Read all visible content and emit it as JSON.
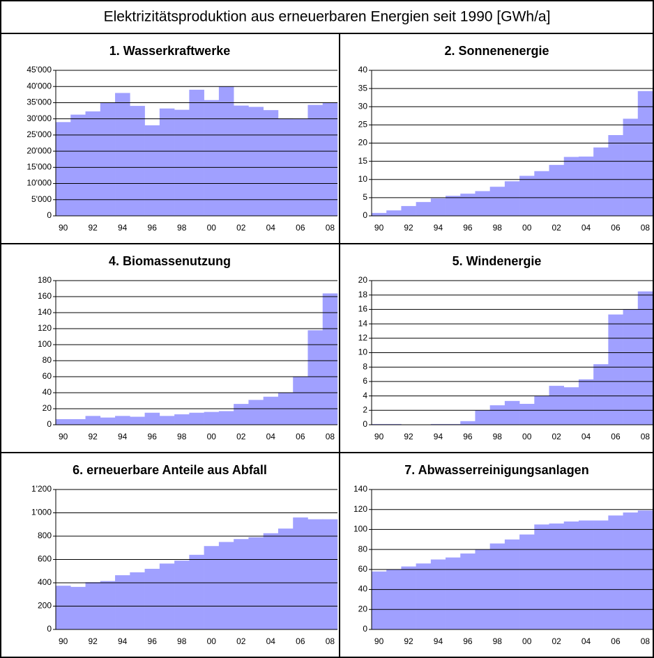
{
  "title": "Elektrizitätsproduktion aus erneuerbaren Energien seit 1990  [GWh/a]",
  "chart_data": [
    {
      "type": "bar",
      "title": "1. Wasserkraftwerke",
      "color": "#a0a0ff",
      "grid": true,
      "categories": [
        "90",
        null,
        "92",
        null,
        "94",
        null,
        "96",
        null,
        "98",
        null,
        "00",
        null,
        "02",
        null,
        "04",
        null,
        "06",
        null,
        "08"
      ],
      "values": [
        29000,
        31300,
        32300,
        35000,
        38000,
        34000,
        28000,
        33200,
        32800,
        39000,
        35800,
        40000,
        34100,
        33700,
        32700,
        30100,
        30000,
        34300,
        35000
      ],
      "ylim": [
        0,
        45000
      ],
      "yticks": [
        0,
        {
          "value": 5000,
          "label": "5'000"
        },
        {
          "value": 10000,
          "label": "10'000"
        },
        {
          "value": 15000,
          "label": "15'000"
        },
        {
          "value": 20000,
          "label": "20'000"
        },
        {
          "value": 25000,
          "label": "25'000"
        },
        {
          "value": 30000,
          "label": "30'000"
        },
        {
          "value": 35000,
          "label": "35'000"
        },
        {
          "value": 40000,
          "label": "40'000"
        },
        {
          "value": 45000,
          "label": "45'000"
        }
      ]
    },
    {
      "type": "bar",
      "title": "2. Sonnenenergie",
      "color": "#a0a0ff",
      "grid": true,
      "categories": [
        "90",
        null,
        "92",
        null,
        "94",
        null,
        "96",
        null,
        "98",
        null,
        "00",
        null,
        "02",
        null,
        "04",
        null,
        "06",
        null,
        "08"
      ],
      "values": [
        0.8,
        1.5,
        2.7,
        3.8,
        4.8,
        5.5,
        6.1,
        6.8,
        8,
        9.5,
        11,
        12.3,
        14,
        16.2,
        16.3,
        18.8,
        22.2,
        26.7,
        34.3
      ],
      "ylim": [
        0,
        40
      ],
      "yticks": [
        0,
        5,
        10,
        15,
        20,
        25,
        30,
        35,
        40
      ]
    },
    {
      "type": "bar",
      "title": "4. Biomassenutzung",
      "color": "#a0a0ff",
      "grid": true,
      "categories": [
        "90",
        null,
        "92",
        null,
        "94",
        null,
        "96",
        null,
        "98",
        null,
        "00",
        null,
        "02",
        null,
        "04",
        null,
        "06",
        null,
        "08"
      ],
      "values": [
        7,
        7,
        11,
        9,
        11,
        10,
        15,
        11,
        13,
        15,
        16,
        17,
        26,
        31,
        35,
        40,
        60,
        118,
        164
      ],
      "ylim": [
        0,
        180
      ],
      "yticks": [
        0,
        20,
        40,
        60,
        80,
        100,
        120,
        140,
        160,
        180
      ]
    },
    {
      "type": "bar",
      "title": "5. Windenergie",
      "color": "#a0a0ff",
      "grid": true,
      "categories": [
        "90",
        null,
        "92",
        null,
        "94",
        null,
        "96",
        null,
        "98",
        null,
        "00",
        null,
        "02",
        null,
        "04",
        null,
        "06",
        null,
        "08"
      ],
      "values": [
        0.1,
        0.1,
        0,
        0,
        0.1,
        0.1,
        0.5,
        2,
        2.7,
        3.3,
        2.9,
        4,
        5.4,
        5.2,
        6.3,
        8.4,
        15.3,
        16,
        18.5
      ],
      "ylim": [
        0,
        20
      ],
      "yticks": [
        0,
        2,
        4,
        6,
        8,
        10,
        12,
        14,
        16,
        18,
        20
      ]
    },
    {
      "type": "bar",
      "title": "6. erneuerbare Anteile aus Abfall",
      "color": "#a0a0ff",
      "grid": true,
      "categories": [
        "90",
        null,
        "92",
        null,
        "94",
        null,
        "96",
        null,
        "98",
        null,
        "00",
        null,
        "02",
        null,
        "04",
        null,
        "06",
        null,
        "08"
      ],
      "values": [
        375,
        365,
        405,
        415,
        465,
        490,
        520,
        565,
        590,
        640,
        715,
        750,
        775,
        790,
        825,
        865,
        960,
        945,
        945
      ],
      "ylim": [
        0,
        1200
      ],
      "yticks": [
        0,
        200,
        400,
        600,
        800,
        {
          "value": 1000,
          "label": "1'000"
        },
        {
          "value": 1200,
          "label": "1'200"
        }
      ]
    },
    {
      "type": "bar",
      "title": "7. Abwasserreinigungsanlagen",
      "color": "#a0a0ff",
      "grid": true,
      "categories": [
        "90",
        null,
        "92",
        null,
        "94",
        null,
        "96",
        null,
        "98",
        null,
        "00",
        null,
        "02",
        null,
        "04",
        null,
        "06",
        null,
        "08"
      ],
      "values": [
        58,
        60,
        63,
        66,
        70,
        72,
        76,
        80,
        86,
        90,
        95,
        105,
        106,
        108,
        109,
        109,
        114,
        117,
        119
      ],
      "ylim": [
        0,
        140
      ],
      "yticks": [
        0,
        20,
        40,
        60,
        80,
        100,
        120,
        140
      ]
    }
  ]
}
